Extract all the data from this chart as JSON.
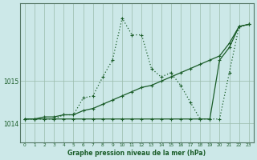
{
  "bg_color": "#cce8e8",
  "grid_color": "#99bbaa",
  "line_color": "#1a5c28",
  "title": "Graphe pression niveau de la mer (hPa)",
  "xlabel_ticks": [
    0,
    1,
    2,
    3,
    4,
    5,
    6,
    7,
    8,
    9,
    10,
    11,
    12,
    13,
    14,
    15,
    16,
    17,
    18,
    19,
    20,
    21,
    22,
    23
  ],
  "ylim": [
    1013.55,
    1016.85
  ],
  "yticks": [
    1014,
    1015
  ],
  "series1_x": [
    0,
    1,
    2,
    3,
    4,
    5,
    6,
    7,
    8,
    9,
    10,
    11,
    12,
    13,
    14,
    15,
    16,
    17,
    18,
    19,
    20,
    21,
    22,
    23
  ],
  "series1_y": [
    1014.1,
    1014.1,
    1014.15,
    1014.15,
    1014.2,
    1014.2,
    1014.3,
    1014.35,
    1014.45,
    1014.55,
    1014.65,
    1014.75,
    1014.85,
    1014.9,
    1015.0,
    1015.1,
    1015.2,
    1015.3,
    1015.4,
    1015.5,
    1015.6,
    1015.9,
    1016.3,
    1016.35
  ],
  "series2_x": [
    0,
    1,
    2,
    3,
    4,
    5,
    6,
    7,
    8,
    9,
    10,
    11,
    12,
    13,
    14,
    15,
    16,
    17,
    18,
    19,
    20,
    21,
    22,
    23
  ],
  "series2_y": [
    1014.1,
    1014.1,
    1014.1,
    1014.1,
    1014.1,
    1014.1,
    1014.1,
    1014.1,
    1014.1,
    1014.1,
    1014.1,
    1014.1,
    1014.1,
    1014.1,
    1014.1,
    1014.1,
    1014.1,
    1014.1,
    1014.1,
    1014.1,
    1015.5,
    1015.8,
    1016.3,
    1016.35
  ],
  "series3_x": [
    0,
    1,
    2,
    3,
    4,
    5,
    6,
    7,
    8,
    9,
    10,
    11,
    12,
    13,
    14,
    15,
    16,
    17,
    18,
    19,
    20,
    21,
    22,
    23
  ],
  "series3_y": [
    1014.1,
    1014.1,
    1014.1,
    1014.1,
    1014.2,
    1014.2,
    1014.6,
    1014.65,
    1015.1,
    1015.5,
    1016.5,
    1016.1,
    1016.1,
    1015.3,
    1015.1,
    1015.2,
    1014.9,
    1014.5,
    1014.1,
    1014.1,
    1014.1,
    1015.2,
    1016.3,
    1016.35
  ]
}
